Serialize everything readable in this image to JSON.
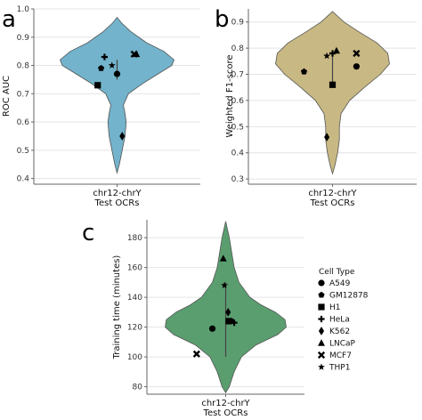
{
  "chart_data": [
    {
      "type": "violin",
      "panel": "a",
      "ylabel": "ROC AUC",
      "xlabel": "Test OCRs",
      "categories": [
        "chr12-chrY"
      ],
      "ylim": [
        0.38,
        1.0
      ],
      "yticks": [
        0.4,
        0.5,
        0.6,
        0.7,
        0.8,
        0.9,
        1.0
      ],
      "grid": true,
      "color": "#73b3cb",
      "violin_range": [
        0.42,
        0.97
      ],
      "violin_profile": [
        [
          0.42,
          0.0
        ],
        [
          0.45,
          0.04
        ],
        [
          0.5,
          0.09
        ],
        [
          0.55,
          0.14
        ],
        [
          0.6,
          0.16
        ],
        [
          0.63,
          0.14
        ],
        [
          0.66,
          0.11
        ],
        [
          0.7,
          0.2
        ],
        [
          0.74,
          0.48
        ],
        [
          0.78,
          0.8
        ],
        [
          0.8,
          0.96
        ],
        [
          0.82,
          1.0
        ],
        [
          0.85,
          0.82
        ],
        [
          0.88,
          0.52
        ],
        [
          0.92,
          0.24
        ],
        [
          0.95,
          0.08
        ],
        [
          0.97,
          0.0
        ]
      ],
      "box": {
        "q1": 0.75,
        "median": 0.78,
        "q3": 0.82
      },
      "points": [
        {
          "cell_type": "A549",
          "value": 0.77,
          "offset": 0.0
        },
        {
          "cell_type": "GM12878",
          "value": 0.79,
          "offset": -0.28
        },
        {
          "cell_type": "H1",
          "value": 0.73,
          "offset": -0.34
        },
        {
          "cell_type": "HeLa",
          "value": 0.83,
          "offset": -0.22
        },
        {
          "cell_type": "K562",
          "value": 0.55,
          "offset": 0.09
        },
        {
          "cell_type": "LNCaP",
          "value": 0.84,
          "offset": 0.34
        },
        {
          "cell_type": "MCF7",
          "value": 0.84,
          "offset": 0.3
        },
        {
          "cell_type": "THP1",
          "value": 0.8,
          "offset": -0.09
        }
      ]
    },
    {
      "type": "violin",
      "panel": "b",
      "ylabel": "Weighted F1-score",
      "xlabel": "Test OCRs",
      "categories": [
        "chr12-chrY"
      ],
      "ylim": [
        0.28,
        0.95
      ],
      "yticks": [
        0.3,
        0.4,
        0.5,
        0.6,
        0.7,
        0.8,
        0.9
      ],
      "grid": true,
      "color": "#c8b883",
      "violin_range": [
        0.32,
        0.94
      ],
      "violin_profile": [
        [
          0.32,
          0.0
        ],
        [
          0.35,
          0.04
        ],
        [
          0.4,
          0.09
        ],
        [
          0.45,
          0.12
        ],
        [
          0.5,
          0.12
        ],
        [
          0.55,
          0.15
        ],
        [
          0.6,
          0.3
        ],
        [
          0.65,
          0.56
        ],
        [
          0.7,
          0.84
        ],
        [
          0.74,
          1.0
        ],
        [
          0.78,
          0.97
        ],
        [
          0.82,
          0.78
        ],
        [
          0.86,
          0.48
        ],
        [
          0.9,
          0.2
        ],
        [
          0.94,
          0.0
        ]
      ],
      "box": {
        "q1": 0.67,
        "median": 0.72,
        "q3": 0.78
      },
      "points": [
        {
          "cell_type": "A549",
          "value": 0.73,
          "offset": 0.42
        },
        {
          "cell_type": "GM12878",
          "value": 0.71,
          "offset": -0.5
        },
        {
          "cell_type": "H1",
          "value": 0.66,
          "offset": 0.0
        },
        {
          "cell_type": "HeLa",
          "value": 0.78,
          "offset": 0.0
        },
        {
          "cell_type": "K562",
          "value": 0.46,
          "offset": -0.1
        },
        {
          "cell_type": "LNCaP",
          "value": 0.79,
          "offset": 0.07
        },
        {
          "cell_type": "MCF7",
          "value": 0.78,
          "offset": 0.42
        },
        {
          "cell_type": "THP1",
          "value": 0.77,
          "offset": -0.1
        }
      ]
    },
    {
      "type": "violin",
      "panel": "c",
      "ylabel": "Training time (minutes)",
      "xlabel": "Test OCRs",
      "categories": [
        "chr12-chrY"
      ],
      "ylim": [
        75,
        192
      ],
      "yticks": [
        80,
        100,
        120,
        140,
        160,
        180
      ],
      "grid": true,
      "color": "#5a9e6f",
      "violin_range": [
        76,
        191
      ],
      "violin_profile": [
        [
          76,
          0.0
        ],
        [
          80,
          0.06
        ],
        [
          90,
          0.14
        ],
        [
          100,
          0.26
        ],
        [
          108,
          0.5
        ],
        [
          115,
          0.86
        ],
        [
          120,
          1.0
        ],
        [
          125,
          0.98
        ],
        [
          130,
          0.82
        ],
        [
          135,
          0.58
        ],
        [
          140,
          0.4
        ],
        [
          150,
          0.22
        ],
        [
          160,
          0.14
        ],
        [
          170,
          0.1
        ],
        [
          180,
          0.06
        ],
        [
          191,
          0.0
        ]
      ],
      "box": {
        "q1": 100,
        "median": 125,
        "q3": 150
      },
      "points": [
        {
          "cell_type": "A549",
          "value": 119,
          "offset": -0.22
        },
        {
          "cell_type": "GM12878",
          "value": 124,
          "offset": 0.1
        },
        {
          "cell_type": "H1",
          "value": 124,
          "offset": 0.05
        },
        {
          "cell_type": "HeLa",
          "value": 123,
          "offset": 0.14
        },
        {
          "cell_type": "K562",
          "value": 130,
          "offset": 0.04
        },
        {
          "cell_type": "LNCaP",
          "value": 166,
          "offset": -0.04
        },
        {
          "cell_type": "MCF7",
          "value": 102,
          "offset": -0.48
        },
        {
          "cell_type": "THP1",
          "value": 148,
          "offset": -0.02
        }
      ]
    }
  ],
  "legend": {
    "title": "Cell Type",
    "placement": "right of panel c",
    "items": [
      {
        "label": "A549",
        "marker": "circle"
      },
      {
        "label": "GM12878",
        "marker": "pentagon"
      },
      {
        "label": "H1",
        "marker": "square"
      },
      {
        "label": "HeLa",
        "marker": "plus"
      },
      {
        "label": "K562",
        "marker": "diamond"
      },
      {
        "label": "LNCaP",
        "marker": "triangle"
      },
      {
        "label": "MCF7",
        "marker": "x"
      },
      {
        "label": "THP1",
        "marker": "star"
      }
    ]
  },
  "panel_labels": [
    "a",
    "b",
    "c"
  ],
  "category_tick": "chr12-chrY",
  "colors": {
    "grid": "#e4e4e4",
    "axis": "#666666",
    "marker": "#000000",
    "box": "#444444"
  }
}
